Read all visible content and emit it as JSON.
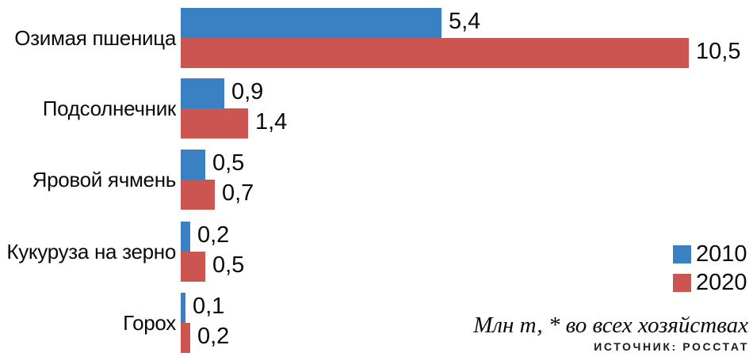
{
  "chart_data": {
    "type": "bar",
    "orientation": "horizontal",
    "title": "",
    "categories": [
      "Озимая пшеница",
      "Подсолнечник",
      "Яровой ячмень",
      "Кукуруза на зерно",
      "Горох"
    ],
    "series": [
      {
        "name": "2010",
        "color": "#3a81c3",
        "values": [
          5.4,
          0.9,
          0.5,
          0.2,
          0.1
        ],
        "labels": [
          "5,4",
          "0,9",
          "0,5",
          "0,2",
          "0,1"
        ]
      },
      {
        "name": "2020",
        "color": "#cc5451",
        "values": [
          10.5,
          1.4,
          0.7,
          0.5,
          0.2
        ],
        "labels": [
          "10,5",
          "1,4",
          "0,7",
          "0,5",
          "0,2"
        ]
      }
    ],
    "xlim": [
      0,
      11.8
    ],
    "grid": false,
    "legend_position": "middle-right",
    "value_labels_shown": true,
    "unit_note": "Млн т, * во всех хозяйствах",
    "source": "ИСТОЧНИК: РОССТАТ"
  }
}
